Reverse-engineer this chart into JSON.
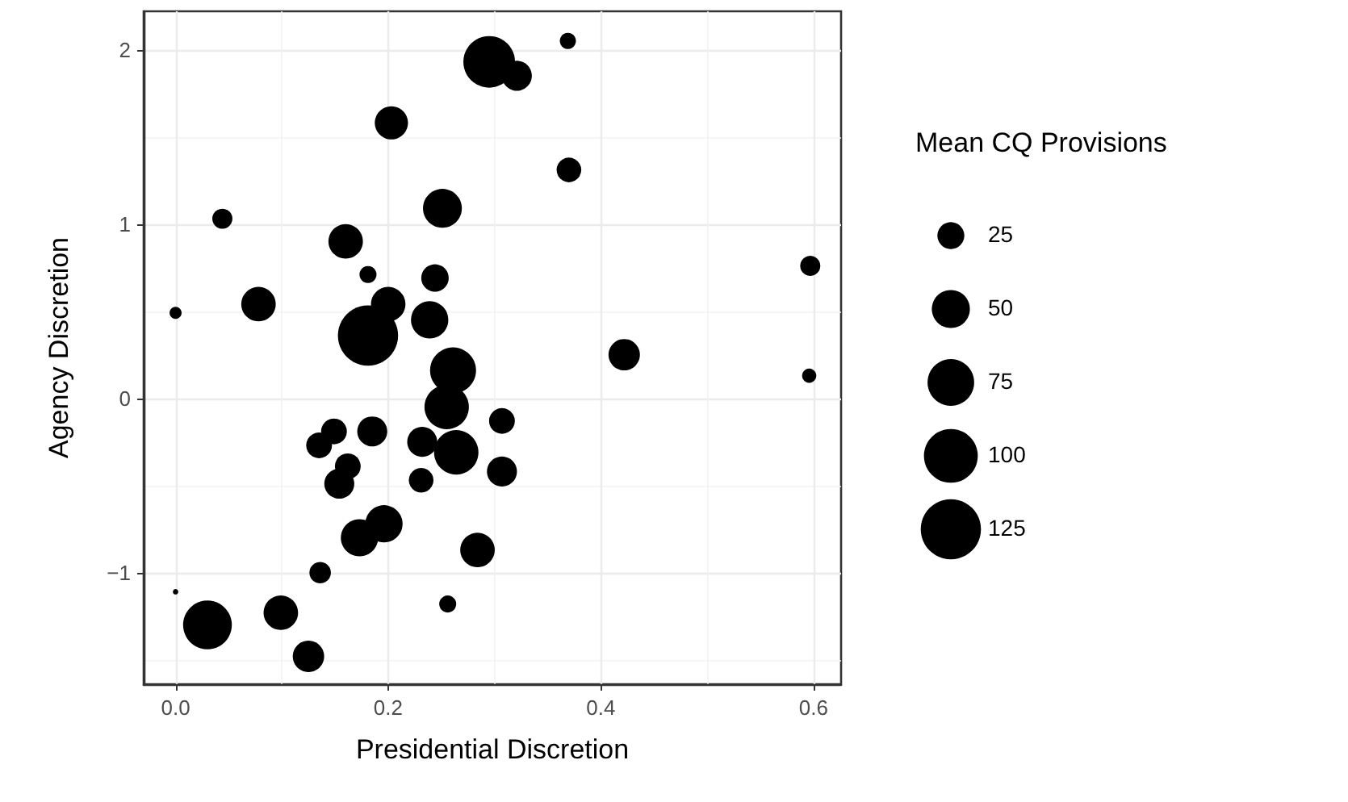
{
  "chart_data": {
    "type": "bubble",
    "xlabel": "Presidential Discretion",
    "ylabel": "Agency Discretion",
    "legend_title": "Mean CQ Provisions",
    "grid": true,
    "xlim": [
      -0.03,
      0.626
    ],
    "xticks": [
      {
        "value": 0,
        "label": "0.0"
      },
      {
        "value": 0.2,
        "label": "0.2"
      },
      {
        "value": 0.4,
        "label": "0.4"
      },
      {
        "value": 0.6,
        "label": "0.6"
      }
    ],
    "ylim": [
      -1.64,
      2.22
    ],
    "yticks": [
      {
        "value": -1,
        "label": "−1"
      },
      0,
      1,
      2
    ],
    "size_legend": [
      25,
      50,
      75,
      100,
      125
    ],
    "series": [
      {
        "color": "#000000",
        "x": [
          0.0,
          0.044,
          0.078,
          0.16,
          0.181,
          0.203,
          0.251,
          0.244,
          0.2,
          0.239,
          0.181,
          0.261,
          0.295,
          0.321,
          0.369,
          0.37,
          0.597,
          0.422,
          0.596,
          0.0,
          0.03,
          0.099,
          0.125,
          0.136,
          0.135,
          0.149,
          0.162,
          0.154,
          0.185,
          0.173,
          0.196,
          0.232,
          0.231,
          0.255,
          0.264,
          0.256,
          0.284,
          0.307,
          0.307
        ],
        "values": [
          0.49,
          1.03,
          0.54,
          0.9,
          0.71,
          1.58,
          1.09,
          0.69,
          0.54,
          0.45,
          0.36,
          0.16,
          1.93,
          1.85,
          2.05,
          1.31,
          0.76,
          0.25,
          0.13,
          -1.11,
          -1.3,
          -1.23,
          -1.48,
          -1.0,
          -0.27,
          -0.19,
          -0.39,
          -0.49,
          -0.19,
          -0.8,
          -0.72,
          -0.25,
          -0.47,
          -0.05,
          -0.31,
          -1.18,
          -0.87,
          -0.13,
          -0.42
        ],
        "sizes": [
          5,
          14,
          41,
          41,
          10,
          38,
          52,
          26,
          41,
          48,
          125,
          73,
          92,
          31,
          9,
          21,
          14,
          34,
          7,
          1,
          82,
          41,
          34,
          16,
          23,
          23,
          23,
          31,
          31,
          48,
          48,
          31,
          21,
          68,
          68,
          10,
          41,
          23,
          31
        ]
      }
    ]
  }
}
